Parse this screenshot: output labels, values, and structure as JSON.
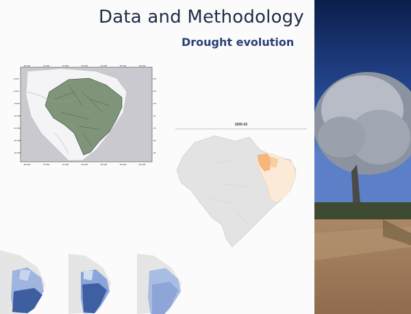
{
  "header": {
    "title": "Data and Methodology",
    "subtitle": "Drought evolution"
  },
  "maps": {
    "main_map_label": "2005-03"
  },
  "photo": {
    "description_icon": "landscape-photo"
  }
}
